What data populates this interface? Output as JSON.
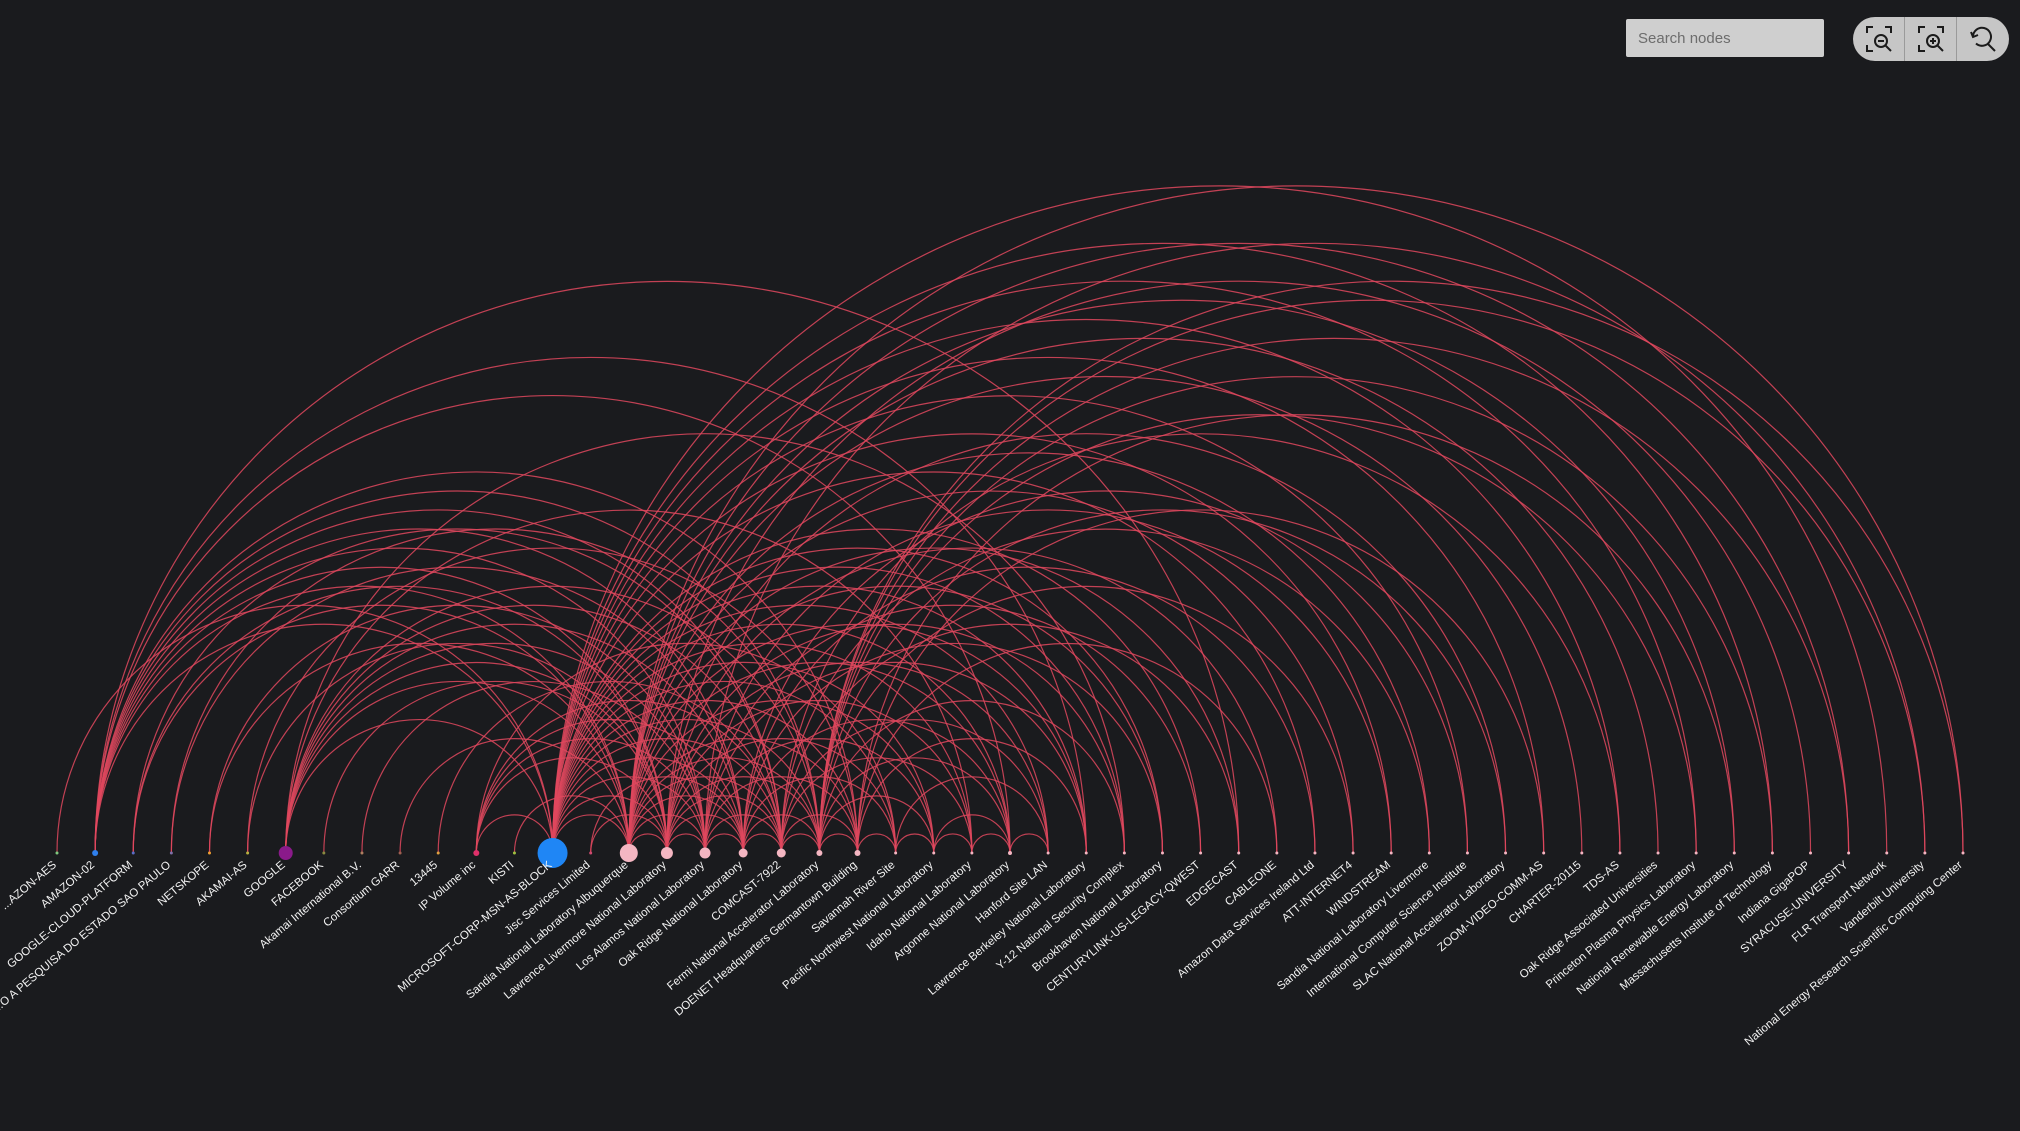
{
  "search": {
    "placeholder": "Search nodes",
    "value": ""
  },
  "toolbar": [
    {
      "name": "zoom-out-button",
      "icon": "zoom-out-icon"
    },
    {
      "name": "zoom-in-button",
      "icon": "zoom-in-icon"
    },
    {
      "name": "reset-zoom-button",
      "icon": "reset-zoom-icon"
    }
  ],
  "colors": {
    "background": "#1a1b1e",
    "link": "#e0485e",
    "label": "#f2f2f2"
  },
  "nodes": [
    {
      "label": "...AZON-AES",
      "color": "#7fc97f",
      "size": 1.5
    },
    {
      "label": "AMAZON-02",
      "color": "#2f80ed",
      "size": 3
    },
    {
      "label": "GOOGLE-CLOUD-PLATFORM",
      "color": "#5a6cc4",
      "size": 1.5
    },
    {
      "label": "...O A PESQUISA DO ESTADO SAO PAULO",
      "color": "#7f6fa8",
      "size": 1.5
    },
    {
      "label": "NETSKOPE",
      "color": "#f0a030",
      "size": 1.5
    },
    {
      "label": "AKAMAI-AS",
      "color": "#b8b040",
      "size": 1.5
    },
    {
      "label": "GOOGLE",
      "color": "#8a1a8a",
      "size": 7
    },
    {
      "label": "FACEBOOK",
      "color": "#8a8a40",
      "size": 1.5
    },
    {
      "label": "Akamai International B.V.",
      "color": "#b08060",
      "size": 1.5
    },
    {
      "label": "Consortium GARR",
      "color": "#a06050",
      "size": 1.5
    },
    {
      "label": "13445",
      "color": "#e0a040",
      "size": 1.5
    },
    {
      "label": "IP Volume inc",
      "color": "#e0306a",
      "size": 3
    },
    {
      "label": "KISTI",
      "color": "#a0c040",
      "size": 1.5
    },
    {
      "label": "MICROSOFT-CORP-MSN-AS-BLOCK",
      "color": "#1f86f5",
      "size": 15
    },
    {
      "label": "Jisc Services Limited",
      "color": "#d04a70",
      "size": 1.5
    },
    {
      "label": "Sandia National Laboratory Albuquerque",
      "color": "#f4b6c2",
      "size": 9
    },
    {
      "label": "Lawrence Livermore National Laboratory",
      "color": "#f4b6c2",
      "size": 6
    },
    {
      "label": "Los Alamos National Laboratory",
      "color": "#f4b6c2",
      "size": 5.5
    },
    {
      "label": "Oak Ridge National Laboratory",
      "color": "#f4b6c2",
      "size": 4.5
    },
    {
      "label": "COMCAST-7922",
      "color": "#f4b6c2",
      "size": 4.5
    },
    {
      "label": "Fermi National Accelerator Laboratory",
      "color": "#f4b6c2",
      "size": 3
    },
    {
      "label": "DOENET Headquarters Germantown Building",
      "color": "#f4b6c2",
      "size": 3
    },
    {
      "label": "Savannah River Site",
      "color": "#f4b6c2",
      "size": 1.5
    },
    {
      "label": "Pacific Northwest National Laboratory",
      "color": "#f4b6c2",
      "size": 1.5
    },
    {
      "label": "Idaho National Laboratory",
      "color": "#f4b6c2",
      "size": 1.5
    },
    {
      "label": "Argonne National Laboratory",
      "color": "#f4b6c2",
      "size": 2
    },
    {
      "label": "Hanford Site LAN",
      "color": "#f4b6c2",
      "size": 1.5
    },
    {
      "label": "Lawrence Berkeley National Laboratory",
      "color": "#f4b6c2",
      "size": 1.5
    },
    {
      "label": "Y-12 National Security Complex",
      "color": "#f4b6c2",
      "size": 1.5
    },
    {
      "label": "Brookhaven National Laboratory",
      "color": "#f4b6c2",
      "size": 1.5
    },
    {
      "label": "CENTURYLINK-US-LEGACY-QWEST",
      "color": "#f4b6c2",
      "size": 1.5
    },
    {
      "label": "EDGECAST",
      "color": "#f4b6c2",
      "size": 1.5
    },
    {
      "label": "CABLEONE",
      "color": "#f4b6c2",
      "size": 1.5
    },
    {
      "label": "Amazon Data Services Ireland Ltd",
      "color": "#f4b6c2",
      "size": 1.5
    },
    {
      "label": "ATT-INTERNET4",
      "color": "#f4b6c2",
      "size": 1.5
    },
    {
      "label": "WINDSTREAM",
      "color": "#f4b6c2",
      "size": 1.5
    },
    {
      "label": "Sandia National Laboratory Livermore",
      "color": "#f4b6c2",
      "size": 1.5
    },
    {
      "label": "International Computer Science Institute",
      "color": "#f4b6c2",
      "size": 1.5
    },
    {
      "label": "SLAC National Accelerator Laboratory",
      "color": "#f4b6c2",
      "size": 1.5
    },
    {
      "label": "ZOOM-VIDEO-COMM-AS",
      "color": "#f4b6c2",
      "size": 1.5
    },
    {
      "label": "CHARTER-20115",
      "color": "#f4b6c2",
      "size": 1.5
    },
    {
      "label": "TDS-AS",
      "color": "#f4b6c2",
      "size": 1.5
    },
    {
      "label": "Oak Ridge Associated Universities",
      "color": "#f4b6c2",
      "size": 1.5
    },
    {
      "label": "Princeton Plasma Physics Laboratory",
      "color": "#f4b6c2",
      "size": 1.5
    },
    {
      "label": "National Renewable Energy Laboratory",
      "color": "#f4b6c2",
      "size": 1.5
    },
    {
      "label": "Massachusetts Institute of Technology",
      "color": "#f4b6c2",
      "size": 1.5
    },
    {
      "label": "Indiana GigaPOP",
      "color": "#f4b6c2",
      "size": 1.5
    },
    {
      "label": "SYRACUSE-UNIVERSITY",
      "color": "#f4b6c2",
      "size": 1.5
    },
    {
      "label": "FLR Transport Network",
      "color": "#f4b6c2",
      "size": 1.5
    },
    {
      "label": "Vanderbilt University",
      "color": "#f4b6c2",
      "size": 1.5
    },
    {
      "label": "National Energy Research Scientific Computing Center",
      "color": "#f4b6c2",
      "size": 1.5
    }
  ],
  "links": [
    [
      0,
      13
    ],
    [
      1,
      15
    ],
    [
      1,
      16
    ],
    [
      1,
      17
    ],
    [
      1,
      18
    ],
    [
      1,
      19
    ],
    [
      1,
      20
    ],
    [
      1,
      21
    ],
    [
      1,
      25
    ],
    [
      1,
      13
    ],
    [
      1,
      27
    ],
    [
      1,
      31
    ],
    [
      2,
      15
    ],
    [
      2,
      16
    ],
    [
      2,
      19
    ],
    [
      3,
      18
    ],
    [
      3,
      20
    ],
    [
      4,
      15
    ],
    [
      4,
      17
    ],
    [
      5,
      16
    ],
    [
      5,
      21
    ],
    [
      6,
      15
    ],
    [
      6,
      16
    ],
    [
      6,
      17
    ],
    [
      6,
      18
    ],
    [
      6,
      19
    ],
    [
      6,
      20
    ],
    [
      6,
      24
    ],
    [
      6,
      13
    ],
    [
      6,
      28
    ],
    [
      7,
      16
    ],
    [
      8,
      17
    ],
    [
      9,
      15
    ],
    [
      10,
      19
    ],
    [
      11,
      16
    ],
    [
      11,
      17
    ],
    [
      11,
      18
    ],
    [
      11,
      19
    ],
    [
      11,
      22
    ],
    [
      11,
      13
    ],
    [
      12,
      15
    ],
    [
      13,
      15
    ],
    [
      13,
      16
    ],
    [
      13,
      17
    ],
    [
      13,
      18
    ],
    [
      13,
      19
    ],
    [
      13,
      20
    ],
    [
      13,
      21
    ],
    [
      13,
      22
    ],
    [
      13,
      23
    ],
    [
      13,
      24
    ],
    [
      13,
      25
    ],
    [
      13,
      26
    ],
    [
      13,
      27
    ],
    [
      13,
      28
    ],
    [
      13,
      29
    ],
    [
      13,
      30
    ],
    [
      13,
      33
    ],
    [
      13,
      35
    ],
    [
      13,
      37
    ],
    [
      13,
      39
    ],
    [
      13,
      41
    ],
    [
      13,
      43
    ],
    [
      13,
      45
    ],
    [
      13,
      48
    ],
    [
      14,
      16
    ],
    [
      14,
      18
    ],
    [
      15,
      16
    ],
    [
      15,
      17
    ],
    [
      15,
      18
    ],
    [
      15,
      19
    ],
    [
      15,
      20
    ],
    [
      15,
      21
    ],
    [
      15,
      23
    ],
    [
      15,
      25
    ],
    [
      15,
      27
    ],
    [
      15,
      29
    ],
    [
      15,
      31
    ],
    [
      15,
      34
    ],
    [
      15,
      36
    ],
    [
      15,
      40
    ],
    [
      15,
      42
    ],
    [
      15,
      44
    ],
    [
      15,
      47
    ],
    [
      15,
      50
    ],
    [
      16,
      17
    ],
    [
      16,
      18
    ],
    [
      16,
      19
    ],
    [
      16,
      20
    ],
    [
      16,
      22
    ],
    [
      16,
      24
    ],
    [
      16,
      26
    ],
    [
      16,
      28
    ],
    [
      16,
      32
    ],
    [
      16,
      38
    ],
    [
      16,
      46
    ],
    [
      17,
      18
    ],
    [
      17,
      19
    ],
    [
      17,
      21
    ],
    [
      17,
      23
    ],
    [
      17,
      27
    ],
    [
      17,
      30
    ],
    [
      17,
      35
    ],
    [
      17,
      49
    ],
    [
      18,
      19
    ],
    [
      18,
      20
    ],
    [
      18,
      22
    ],
    [
      18,
      25
    ],
    [
      18,
      29
    ],
    [
      18,
      33
    ],
    [
      18,
      37
    ],
    [
      19,
      20
    ],
    [
      19,
      21
    ],
    [
      19,
      24
    ],
    [
      19,
      26
    ],
    [
      19,
      31
    ],
    [
      19,
      36
    ],
    [
      19,
      41
    ],
    [
      20,
      21
    ],
    [
      20,
      23
    ],
    [
      20,
      25
    ],
    [
      20,
      28
    ],
    [
      20,
      34
    ],
    [
      20,
      38
    ],
    [
      20,
      43
    ],
    [
      20,
      45
    ],
    [
      20,
      47
    ],
    [
      20,
      49
    ],
    [
      20,
      50
    ],
    [
      21,
      22
    ],
    [
      21,
      27
    ],
    [
      21,
      32
    ],
    [
      21,
      39
    ],
    [
      21,
      44
    ],
    [
      22,
      23
    ],
    [
      22,
      26
    ],
    [
      23,
      24
    ],
    [
      23,
      25
    ],
    [
      24,
      25
    ],
    [
      25,
      26
    ]
  ]
}
